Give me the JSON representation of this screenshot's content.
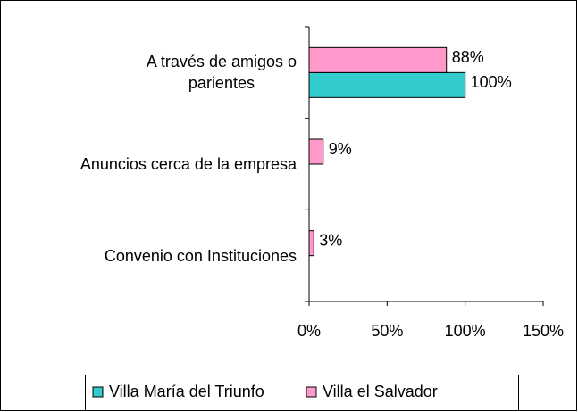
{
  "chart_data": {
    "type": "bar",
    "orientation": "horizontal",
    "categories": [
      "A través de amigos o\nparientes",
      "Anuncios cerca de la empresa",
      "Convenio con Instituciones"
    ],
    "series": [
      {
        "name": "Villa María del Triunfo",
        "color": "#33cccc",
        "values": [
          100,
          null,
          null
        ],
        "value_labels": [
          "100%",
          null,
          null
        ]
      },
      {
        "name": "Villa el Salvador",
        "color": "#ff99cc",
        "values": [
          88,
          9,
          3
        ],
        "value_labels": [
          "88%",
          "9%",
          "3%"
        ]
      }
    ],
    "xlim": [
      0,
      150
    ],
    "xticks": [
      {
        "value": 0,
        "label": "0%"
      },
      {
        "value": 50,
        "label": "50%"
      },
      {
        "value": 100,
        "label": "100%"
      },
      {
        "value": 150,
        "label": "150%"
      }
    ],
    "legend": "bottom"
  }
}
